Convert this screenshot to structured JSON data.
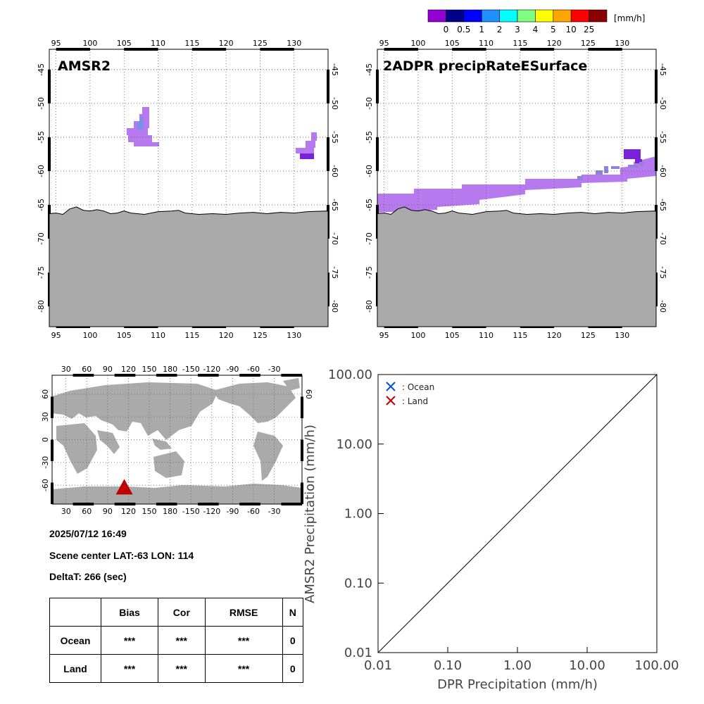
{
  "colorbar": {
    "colors": [
      "#9400d3",
      "#00008b",
      "#0000ff",
      "#1e90ff",
      "#00ffff",
      "#7fff7f",
      "#ffff00",
      "#ffa500",
      "#ff0000",
      "#8b0000"
    ],
    "labels": [
      "0",
      "0.5",
      "1",
      "2",
      "3",
      "4",
      "5",
      "10",
      "25"
    ],
    "unit": "[mm/h]"
  },
  "maps": {
    "lon_ticks": [
      "95",
      "100",
      "105",
      "110",
      "115",
      "120",
      "125",
      "130"
    ],
    "lat_ticks": [
      "-45",
      "-50",
      "-55",
      "-60",
      "-65",
      "-70",
      "-75",
      "-80"
    ],
    "amsr2_title": "AMSR2",
    "dpr_title": "2ADPR precipRateESurface"
  },
  "globe": {
    "lon_ticks": [
      "30",
      "60",
      "90",
      "120",
      "150",
      "180",
      "-150",
      "-120",
      "-90",
      "-60",
      "-30"
    ],
    "lat_ticks": [
      "60",
      "30",
      "0",
      "-30",
      "-60"
    ],
    "right_lat_tick": "60",
    "scene_marker": {
      "lat": -63,
      "lon": 114
    }
  },
  "info": {
    "datetime": "2025/07/12 16:49",
    "scene_center": "Scene center LAT:-63   LON: 114",
    "deltat": "DeltaT:  266 (sec)"
  },
  "stats": {
    "headers": [
      "Bias",
      "Cor",
      "RMSE",
      "N"
    ],
    "rows": [
      {
        "label": "Ocean",
        "bias": "***",
        "cor": "***",
        "rmse": "***",
        "n": "0"
      },
      {
        "label": "Land",
        "bias": "***",
        "cor": "***",
        "rmse": "***",
        "n": "0"
      }
    ]
  },
  "chart_data": {
    "type": "scatter",
    "xlabel": "DPR Precipitation (mm/h)",
    "ylabel": "AMSR2 Precipitation (mm/h)",
    "xscale": "log",
    "yscale": "log",
    "xlim": [
      0.01,
      100
    ],
    "ylim": [
      0.01,
      100
    ],
    "x_ticks": [
      "0.01",
      "0.10",
      "1.00",
      "10.00",
      "100.00"
    ],
    "y_ticks": [
      "0.01",
      "0.10",
      "1.00",
      "10.00",
      "100.00"
    ],
    "series": [
      {
        "name": ": Ocean",
        "color": "#0050dc",
        "marker": "x",
        "points": []
      },
      {
        "name": ": Land",
        "color": "#c00000",
        "marker": "x",
        "points": []
      }
    ],
    "reference_line": "1:1",
    "legend_position": "top-left"
  }
}
